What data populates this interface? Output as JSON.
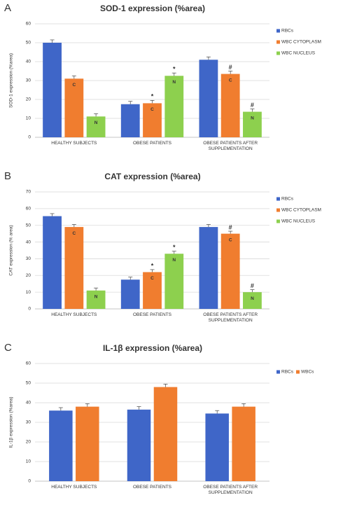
{
  "chart_data": [
    {
      "type": "bar",
      "panel": "A",
      "title": "SOD-1 expression (%area)",
      "y_label": "SOD-1 expression (%area)",
      "categories": [
        "HEALTHY SUBJECTS",
        "OBESE PATIENTS",
        "OBESE PATIENTS AFTER SUPPLEMENTATION"
      ],
      "series": [
        {
          "name": "RBCs",
          "color": "#3f66c8",
          "values": [
            50,
            17.5,
            41
          ],
          "errors": [
            1.5,
            1.5,
            1.5
          ]
        },
        {
          "name": "WBC CYTOPLASM",
          "color": "#f07d2f",
          "values": [
            31,
            18,
            33.5
          ],
          "errors": [
            1.5,
            1.5,
            1.5
          ],
          "bar_label": "C",
          "symbols": [
            null,
            "*",
            "#"
          ]
        },
        {
          "name": "WBC NUCLEUS",
          "color": "#8dd04e",
          "values": [
            11,
            32.5,
            13.5
          ],
          "errors": [
            1.5,
            1.5,
            1.5
          ],
          "bar_label": "N",
          "symbols": [
            null,
            "*",
            "#"
          ]
        }
      ],
      "ylim": [
        0,
        60
      ],
      "yticks": [
        0,
        10,
        20,
        30,
        40,
        50,
        60
      ],
      "grid": true,
      "legend": "vertical"
    },
    {
      "type": "bar",
      "panel": "B",
      "title": "CAT expression (%area)",
      "y_label": "CAT expression (% area)",
      "categories": [
        "HEALTHY SUBJECTS",
        "OBESE PATIENTS",
        "OBESE PATIENTS AFTER SUPPLEMENTATION"
      ],
      "series": [
        {
          "name": "RBCs",
          "color": "#3f66c8",
          "values": [
            55.5,
            17.5,
            49
          ],
          "errors": [
            1.5,
            1.5,
            1.5
          ]
        },
        {
          "name": "WBC CYTOPLASM",
          "color": "#f07d2f",
          "values": [
            49,
            22,
            45
          ],
          "errors": [
            1.5,
            1.5,
            1.5
          ],
          "bar_label": "C",
          "symbols": [
            null,
            "*",
            "#"
          ]
        },
        {
          "name": "WBC NUCLEUS",
          "color": "#8dd04e",
          "values": [
            11,
            33,
            10
          ],
          "errors": [
            1.5,
            1.5,
            1.5
          ],
          "bar_label": "N",
          "symbols": [
            null,
            "*",
            "#"
          ]
        }
      ],
      "ylim": [
        0,
        70
      ],
      "yticks": [
        0,
        10,
        20,
        30,
        40,
        50,
        60,
        70
      ],
      "grid": true,
      "legend": "vertical"
    },
    {
      "type": "bar",
      "panel": "C",
      "title": "IL-1β expression (%area)",
      "y_label": "IL-1β expression (%area)",
      "categories": [
        "HEALTHY SUBJECTS",
        "OBESE PATIENTS",
        "OBESE PATIENTS AFTER SUPPLEMENTATION"
      ],
      "series": [
        {
          "name": "RBCs",
          "color": "#3f66c8",
          "values": [
            36,
            36.5,
            34.5
          ],
          "errors": [
            1.5,
            1.5,
            1.5
          ]
        },
        {
          "name": "WBCs",
          "color": "#f07d2f",
          "values": [
            38,
            48,
            38
          ],
          "errors": [
            1.5,
            1.5,
            1.5
          ]
        }
      ],
      "ylim": [
        0,
        60
      ],
      "yticks": [
        0,
        10,
        20,
        30,
        40,
        50,
        60
      ],
      "grid": true,
      "legend": "horizontal"
    }
  ]
}
